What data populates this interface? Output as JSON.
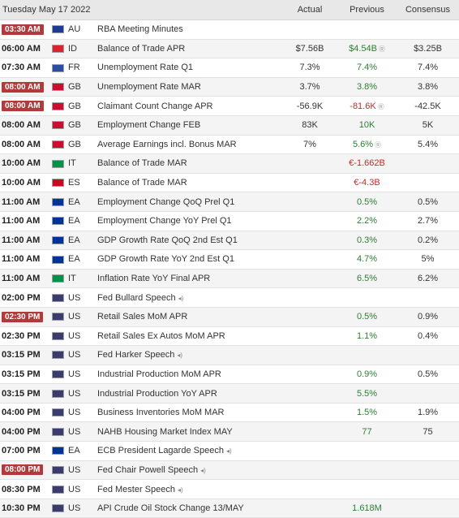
{
  "header": {
    "date": "Tuesday May 17 2022",
    "actual": "Actual",
    "previous": "Previous",
    "consensus": "Consensus"
  },
  "rows": [
    {
      "time": "03:30 AM",
      "highlight": true,
      "flag": "#1f3a93",
      "country": "AU",
      "event": "RBA Meeting Minutes",
      "speech": false,
      "actual": "",
      "previous": "",
      "previous_color": "neu",
      "previous_revised": false,
      "consensus": ""
    },
    {
      "time": "06:00 AM",
      "highlight": false,
      "flag": "#d9232e",
      "country": "ID",
      "event": "Balance of Trade APR",
      "speech": false,
      "actual": "$7.56B",
      "previous": "$4.54B",
      "previous_color": "pos",
      "previous_revised": true,
      "consensus": "$3.25B"
    },
    {
      "time": "07:30 AM",
      "highlight": false,
      "flag": "#2b4ea2",
      "country": "FR",
      "event": "Unemployment Rate Q1",
      "speech": false,
      "actual": "7.3%",
      "previous": "7.4%",
      "previous_color": "pos",
      "previous_revised": false,
      "consensus": "7.4%"
    },
    {
      "time": "08:00 AM",
      "highlight": true,
      "flag": "#c8102e",
      "country": "GB",
      "event": "Unemployment Rate MAR",
      "speech": false,
      "actual": "3.7%",
      "previous": "3.8%",
      "previous_color": "pos",
      "previous_revised": false,
      "consensus": "3.8%"
    },
    {
      "time": "08:00 AM",
      "highlight": true,
      "flag": "#c8102e",
      "country": "GB",
      "event": "Claimant Count Change APR",
      "speech": false,
      "actual": "-56.9K",
      "previous": "-81.6K",
      "previous_color": "neg",
      "previous_revised": true,
      "consensus": "-42.5K"
    },
    {
      "time": "08:00 AM",
      "highlight": false,
      "flag": "#c8102e",
      "country": "GB",
      "event": "Employment Change FEB",
      "speech": false,
      "actual": "83K",
      "previous": "10K",
      "previous_color": "pos",
      "previous_revised": false,
      "consensus": "5K"
    },
    {
      "time": "08:00 AM",
      "highlight": false,
      "flag": "#c8102e",
      "country": "GB",
      "event": "Average Earnings incl. Bonus MAR",
      "speech": false,
      "actual": "7%",
      "previous": "5.6%",
      "previous_color": "pos",
      "previous_revised": true,
      "consensus": "5.4%"
    },
    {
      "time": "10:00 AM",
      "highlight": false,
      "flag": "#009246",
      "country": "IT",
      "event": "Balance of Trade MAR",
      "speech": false,
      "actual": "",
      "previous": "€-1.662B",
      "previous_color": "neg",
      "previous_revised": false,
      "consensus": ""
    },
    {
      "time": "10:00 AM",
      "highlight": false,
      "flag": "#c60b1e",
      "country": "ES",
      "event": "Balance of Trade MAR",
      "speech": false,
      "actual": "",
      "previous": "€-4.3B",
      "previous_color": "neg",
      "previous_revised": false,
      "consensus": ""
    },
    {
      "time": "11:00 AM",
      "highlight": false,
      "flag": "#003399",
      "country": "EA",
      "event": "Employment Change QoQ Prel Q1",
      "speech": false,
      "actual": "",
      "previous": "0.5%",
      "previous_color": "pos",
      "previous_revised": false,
      "consensus": "0.5%"
    },
    {
      "time": "11:00 AM",
      "highlight": false,
      "flag": "#003399",
      "country": "EA",
      "event": "Employment Change YoY Prel Q1",
      "speech": false,
      "actual": "",
      "previous": "2.2%",
      "previous_color": "pos",
      "previous_revised": false,
      "consensus": "2.7%"
    },
    {
      "time": "11:00 AM",
      "highlight": false,
      "flag": "#003399",
      "country": "EA",
      "event": "GDP Growth Rate QoQ 2nd Est Q1",
      "speech": false,
      "actual": "",
      "previous": "0.3%",
      "previous_color": "pos",
      "previous_revised": false,
      "consensus": "0.2%"
    },
    {
      "time": "11:00 AM",
      "highlight": false,
      "flag": "#003399",
      "country": "EA",
      "event": "GDP Growth Rate YoY 2nd Est Q1",
      "speech": false,
      "actual": "",
      "previous": "4.7%",
      "previous_color": "pos",
      "previous_revised": false,
      "consensus": "5%"
    },
    {
      "time": "11:00 AM",
      "highlight": false,
      "flag": "#009246",
      "country": "IT",
      "event": "Inflation Rate YoY Final APR",
      "speech": false,
      "actual": "",
      "previous": "6.5%",
      "previous_color": "pos",
      "previous_revised": false,
      "consensus": "6.2%"
    },
    {
      "time": "02:00 PM",
      "highlight": false,
      "flag": "#3c3b6e",
      "country": "US",
      "event": "Fed Bullard Speech",
      "speech": true,
      "actual": "",
      "previous": "",
      "previous_color": "neu",
      "previous_revised": false,
      "consensus": ""
    },
    {
      "time": "02:30 PM",
      "highlight": true,
      "flag": "#3c3b6e",
      "country": "US",
      "event": "Retail Sales MoM APR",
      "speech": false,
      "actual": "",
      "previous": "0.5%",
      "previous_color": "pos",
      "previous_revised": false,
      "consensus": "0.9%"
    },
    {
      "time": "02:30 PM",
      "highlight": false,
      "flag": "#3c3b6e",
      "country": "US",
      "event": "Retail Sales Ex Autos MoM APR",
      "speech": false,
      "actual": "",
      "previous": "1.1%",
      "previous_color": "pos",
      "previous_revised": false,
      "consensus": "0.4%"
    },
    {
      "time": "03:15 PM",
      "highlight": false,
      "flag": "#3c3b6e",
      "country": "US",
      "event": "Fed Harker Speech",
      "speech": true,
      "actual": "",
      "previous": "",
      "previous_color": "neu",
      "previous_revised": false,
      "consensus": ""
    },
    {
      "time": "03:15 PM",
      "highlight": false,
      "flag": "#3c3b6e",
      "country": "US",
      "event": "Industrial Production MoM APR",
      "speech": false,
      "actual": "",
      "previous": "0.9%",
      "previous_color": "pos",
      "previous_revised": false,
      "consensus": "0.5%"
    },
    {
      "time": "03:15 PM",
      "highlight": false,
      "flag": "#3c3b6e",
      "country": "US",
      "event": "Industrial Production YoY APR",
      "speech": false,
      "actual": "",
      "previous": "5.5%",
      "previous_color": "pos",
      "previous_revised": false,
      "consensus": ""
    },
    {
      "time": "04:00 PM",
      "highlight": false,
      "flag": "#3c3b6e",
      "country": "US",
      "event": "Business Inventories MoM MAR",
      "speech": false,
      "actual": "",
      "previous": "1.5%",
      "previous_color": "pos",
      "previous_revised": false,
      "consensus": "1.9%"
    },
    {
      "time": "04:00 PM",
      "highlight": false,
      "flag": "#3c3b6e",
      "country": "US",
      "event": "NAHB Housing Market Index MAY",
      "speech": false,
      "actual": "",
      "previous": "77",
      "previous_color": "pos",
      "previous_revised": false,
      "consensus": "75"
    },
    {
      "time": "07:00 PM",
      "highlight": false,
      "flag": "#003399",
      "country": "EA",
      "event": "ECB President Lagarde Speech",
      "speech": true,
      "actual": "",
      "previous": "",
      "previous_color": "neu",
      "previous_revised": false,
      "consensus": ""
    },
    {
      "time": "08:00 PM",
      "highlight": true,
      "flag": "#3c3b6e",
      "country": "US",
      "event": "Fed Chair Powell Speech",
      "speech": true,
      "actual": "",
      "previous": "",
      "previous_color": "neu",
      "previous_revised": false,
      "consensus": ""
    },
    {
      "time": "08:30 PM",
      "highlight": false,
      "flag": "#3c3b6e",
      "country": "US",
      "event": "Fed Mester Speech",
      "speech": true,
      "actual": "",
      "previous": "",
      "previous_color": "neu",
      "previous_revised": false,
      "consensus": ""
    },
    {
      "time": "10:30 PM",
      "highlight": false,
      "flag": "#3c3b6e",
      "country": "US",
      "event": "API Crude Oil Stock Change 13/MAY",
      "speech": false,
      "actual": "",
      "previous": "1.618M",
      "previous_color": "pos",
      "previous_revised": false,
      "consensus": ""
    }
  ]
}
